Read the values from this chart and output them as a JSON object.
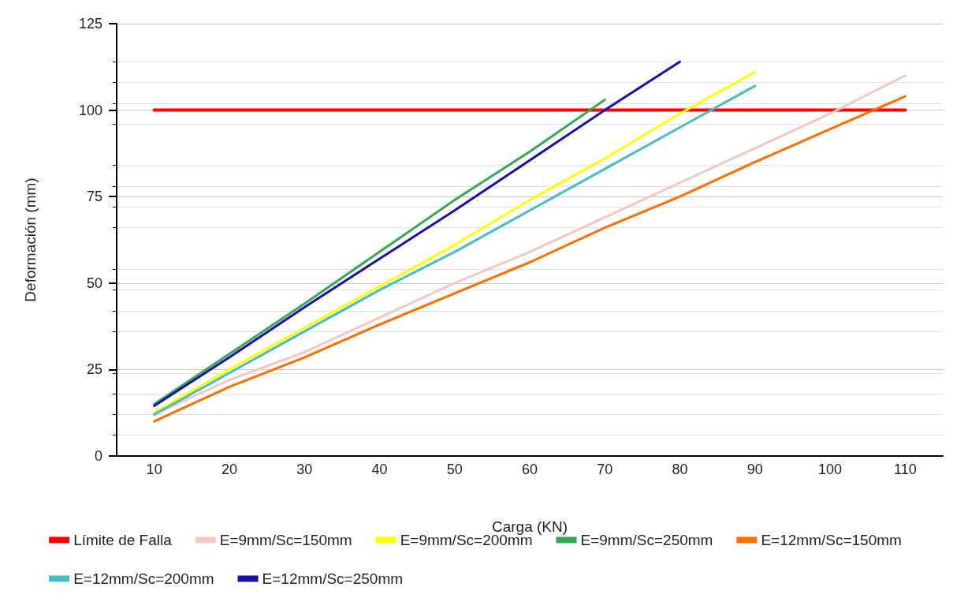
{
  "chart_data": {
    "type": "line",
    "xlabel": "Carga (KN)",
    "ylabel": "Deformación (mm)",
    "categories": [
      "10",
      "20",
      "30",
      "40",
      "50",
      "60",
      "70",
      "80",
      "90",
      "100",
      "110"
    ],
    "ylim": [
      0,
      125
    ],
    "yticks": [
      0,
      25,
      50,
      75,
      100,
      125
    ],
    "grid": "y",
    "legend": "bottom",
    "marker": "none",
    "line_style": "solid",
    "series": [
      {
        "name": "Límite de Falla",
        "color": "#ff0000",
        "values": [
          100,
          100,
          100,
          100,
          100,
          100,
          100,
          100,
          100,
          100,
          100
        ]
      },
      {
        "name": "E=9mm/Sc=150mm",
        "color": "#f4c7c3",
        "values": [
          12,
          22,
          30,
          40,
          50,
          59,
          69,
          79,
          89,
          99,
          110
        ]
      },
      {
        "name": "E=9mm/Sc=200mm",
        "color": "#ffff00",
        "values": [
          12.5,
          25,
          37,
          49,
          61,
          74,
          86,
          99,
          111,
          null,
          null
        ]
      },
      {
        "name": "E=9mm/Sc=250mm",
        "color": "#34a853",
        "values": [
          15,
          29.5,
          44,
          59,
          74,
          88,
          103,
          null,
          null,
          null,
          null
        ]
      },
      {
        "name": "E=12mm/Sc=150mm",
        "color": "#ff6d00",
        "values": [
          10,
          20,
          28.5,
          38,
          47,
          56,
          66,
          75,
          85,
          94.5,
          104
        ]
      },
      {
        "name": "E=12mm/Sc=200mm",
        "color": "#46bdc6",
        "values": [
          12,
          24,
          36,
          48,
          59,
          71,
          83,
          95,
          107,
          null,
          null
        ]
      },
      {
        "name": "E=12mm/Sc=250mm",
        "color": "#1a0fa8",
        "values": [
          14.5,
          28.5,
          43,
          57,
          71,
          85.5,
          100,
          114,
          null,
          null,
          null
        ]
      }
    ]
  }
}
